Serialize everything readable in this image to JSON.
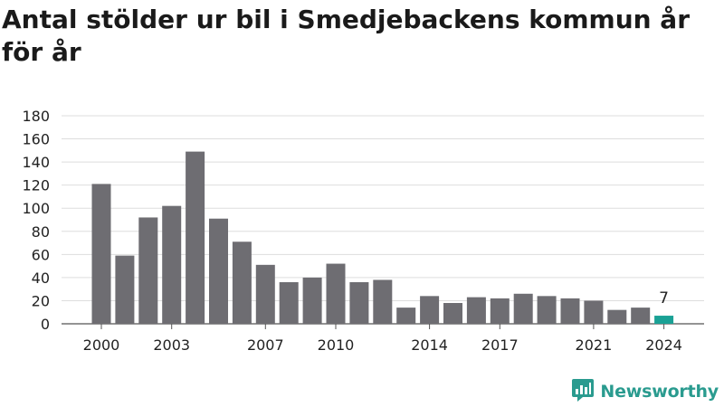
{
  "title": "Antal stölder ur bil i Smedjebackens kommun år för år",
  "brand": {
    "name": "Newsworthy",
    "icon": "newsworthy-logo-icon"
  },
  "colors": {
    "bar": "#6e6d72",
    "highlight": "#1aa195",
    "grid": "#dddddd",
    "text": "#222222",
    "brand": "#2a9b8f"
  },
  "chart_data": {
    "type": "bar",
    "title": "Antal stölder ur bil i Smedjebackens kommun år för år",
    "xlabel": "",
    "ylabel": "",
    "categories": [
      "2000",
      "2001",
      "2002",
      "2003",
      "2004",
      "2005",
      "2006",
      "2007",
      "2008",
      "2009",
      "2010",
      "2011",
      "2012",
      "2013",
      "2014",
      "2015",
      "2016",
      "2017",
      "2018",
      "2019",
      "2020",
      "2021",
      "2022",
      "2023",
      "2024"
    ],
    "x_tick_labels": [
      "2000",
      "2003",
      "2007",
      "2010",
      "2014",
      "2017",
      "2021",
      "2024"
    ],
    "values": [
      121,
      59,
      92,
      102,
      149,
      91,
      71,
      51,
      36,
      40,
      52,
      36,
      38,
      14,
      24,
      18,
      23,
      22,
      26,
      24,
      22,
      20,
      12,
      14,
      7
    ],
    "highlight_index": 24,
    "annotations": [
      {
        "category": "2024",
        "text": "7"
      }
    ],
    "ylim": [
      0,
      180
    ],
    "y_ticks": [
      0,
      20,
      40,
      60,
      80,
      100,
      120,
      140,
      160,
      180
    ],
    "grid": true,
    "legend": "none"
  }
}
